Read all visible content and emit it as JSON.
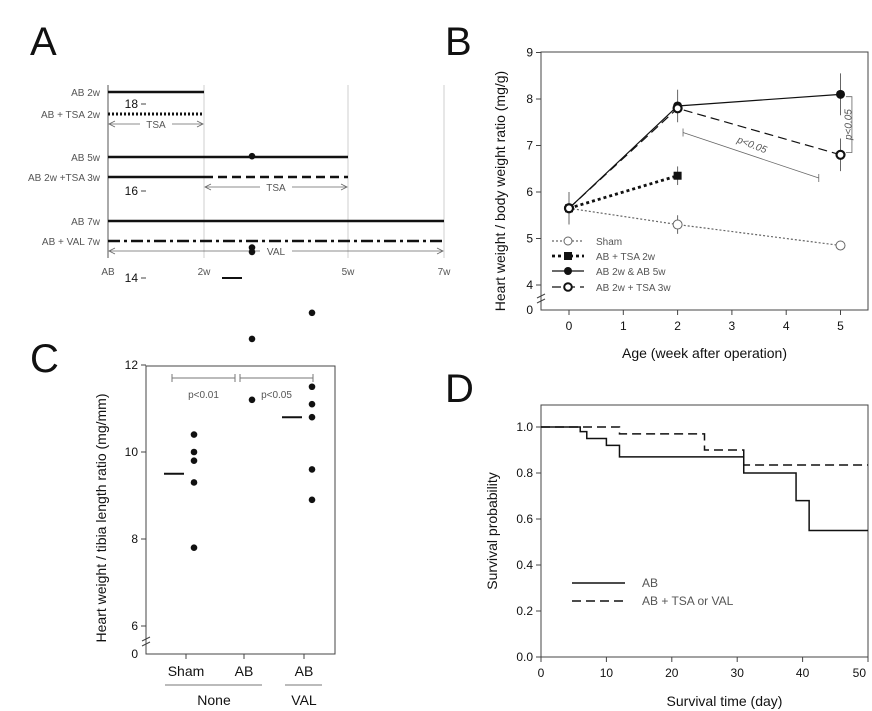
{
  "panels": {
    "a": "A",
    "b": "B",
    "c": "C",
    "d": "D"
  },
  "chart_data": [
    {
      "panel": "A",
      "type": "timeline",
      "groups": [
        {
          "rows": [
            {
              "label": "AB 2w",
              "segments": [
                {
                  "from": 0,
                  "to": 2,
                  "style": "solid"
                }
              ]
            },
            {
              "label": "AB + TSA 2w",
              "segments": [
                {
                  "from": 0,
                  "to": 2,
                  "style": "dotted"
                }
              ]
            }
          ],
          "treatment": {
            "label": "TSA",
            "from": 0,
            "to": 2
          }
        },
        {
          "rows": [
            {
              "label": "AB 5w",
              "segments": [
                {
                  "from": 0,
                  "to": 5,
                  "style": "solid"
                }
              ]
            },
            {
              "label": "AB 2w +TSA 3w",
              "segments": [
                {
                  "from": 0,
                  "to": 2,
                  "style": "solid"
                },
                {
                  "from": 2,
                  "to": 5,
                  "style": "dashed"
                }
              ]
            }
          ],
          "treatment": {
            "label": "TSA",
            "from": 2,
            "to": 5
          }
        },
        {
          "rows": [
            {
              "label": "AB 7w",
              "segments": [
                {
                  "from": 0,
                  "to": 7,
                  "style": "solid"
                }
              ]
            },
            {
              "label": "AB + VAL 7w",
              "segments": [
                {
                  "from": 0,
                  "to": 7,
                  "style": "dashdot"
                }
              ]
            }
          ],
          "treatment": {
            "label": "VAL",
            "from": 0,
            "to": 7
          }
        }
      ],
      "ticks": [
        {
          "v": 0,
          "label": "AB"
        },
        {
          "v": 2,
          "label": "2w"
        },
        {
          "v": 5,
          "label": "5w"
        },
        {
          "v": 7,
          "label": "7w"
        }
      ]
    },
    {
      "panel": "B",
      "type": "line",
      "xlabel": "Age (week after operation)",
      "ylabel": "Heart weight / body weight ratio (mg/g)",
      "xlim": [
        -0.5,
        5.5
      ],
      "xticks": [
        0,
        1,
        2,
        3,
        4,
        5
      ],
      "ylim": [
        3.5,
        9
      ],
      "yticks": [
        4,
        5,
        6,
        7,
        8,
        9
      ],
      "ybreak_label": "0",
      "series": [
        {
          "name": "Sham",
          "style": "dotted",
          "marker": "open-circle",
          "x": [
            0,
            2,
            5
          ],
          "y": [
            5.65,
            5.3,
            4.85
          ],
          "err": [
            0.3,
            0.2,
            0.1
          ]
        },
        {
          "name": "AB + TSA 2w",
          "style": "dotted-bold",
          "marker": "filled-square",
          "x": [
            0,
            2
          ],
          "y": [
            5.65,
            6.35
          ],
          "err": [
            0,
            0.2
          ]
        },
        {
          "name": "AB 2w & AB 5w",
          "style": "solid",
          "marker": "filled-circle",
          "x": [
            0,
            2,
            5
          ],
          "y": [
            5.65,
            7.85,
            8.1
          ],
          "err": [
            0.35,
            0.35,
            0.45
          ]
        },
        {
          "name": "AB 2w + TSA 3w",
          "style": "dashed",
          "marker": "bold-circle",
          "x": [
            0,
            2,
            5
          ],
          "y": [
            5.65,
            7.8,
            6.8
          ],
          "err": [
            0,
            0,
            0.35
          ]
        }
      ],
      "legend_position": "bottom-left",
      "annotations": [
        "p<0.05",
        "p<0.05"
      ]
    },
    {
      "panel": "C",
      "type": "scatter",
      "ylabel": "Heart weight / tibia length ratio (mg/mm)",
      "ylim": [
        5,
        18
      ],
      "yticks": [
        6,
        8,
        10,
        12,
        14,
        16,
        18
      ],
      "ybreak_label": "0",
      "categories": [
        "Sham",
        "AB",
        "AB"
      ],
      "group_labels": [
        "None",
        "VAL"
      ],
      "points": [
        [
          10.4,
          10.0,
          9.8,
          9.3,
          7.8
        ],
        [
          16.8,
          14.7,
          14.6,
          12.6,
          11.2
        ],
        [
          13.2,
          11.5,
          11.1,
          10.8,
          9.6,
          8.9
        ]
      ],
      "means": [
        9.5,
        14.0,
        10.8
      ],
      "annotations": [
        "p<0.01",
        "p<0.05"
      ]
    },
    {
      "panel": "D",
      "type": "line",
      "subtype": "kaplan-meier",
      "xlabel": "Survival time (day)",
      "ylabel": "Survival probability",
      "xlim": [
        0,
        50
      ],
      "xticks": [
        0,
        10,
        20,
        30,
        40,
        50
      ],
      "ylim": [
        0,
        1.05
      ],
      "yticks": [
        "0.0",
        "0.2",
        "0.4",
        "0.6",
        "0.8",
        "1.0"
      ],
      "series": [
        {
          "name": "AB",
          "style": "solid",
          "steps": [
            [
              0,
              1.0
            ],
            [
              6,
              0.98
            ],
            [
              7,
              0.95
            ],
            [
              10,
              0.92
            ],
            [
              12,
              0.87
            ],
            [
              31,
              0.8
            ],
            [
              39,
              0.68
            ],
            [
              41,
              0.55
            ],
            [
              50,
              0.55
            ]
          ]
        },
        {
          "name": "AB + TSA or VAL",
          "style": "dashed",
          "steps": [
            [
              0,
              1.0
            ],
            [
              12,
              0.97
            ],
            [
              25,
              0.9
            ],
            [
              31,
              0.835
            ],
            [
              50,
              0.835
            ]
          ]
        }
      ],
      "legend_position": "bottom-left"
    }
  ]
}
